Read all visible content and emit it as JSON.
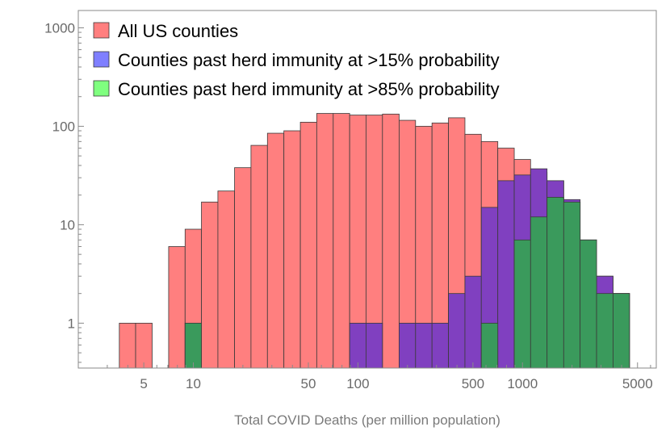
{
  "chart_data": {
    "type": "bar",
    "title": "",
    "xlabel": "Total COVID Deaths (per million population)",
    "ylabel": "",
    "x_scale": "log",
    "y_scale": "log",
    "xlim": [
      2,
      6500
    ],
    "ylim": [
      0.35,
      1500
    ],
    "x_ticks": [
      5,
      10,
      50,
      100,
      500,
      1000,
      5000
    ],
    "x_tick_labels": [
      "5",
      "10",
      "50",
      "100",
      "500",
      "1000",
      "5000"
    ],
    "y_ticks": [
      1,
      10,
      100,
      1000
    ],
    "y_tick_labels": [
      "1",
      "10",
      "100",
      "1000"
    ],
    "grid": false,
    "legend_position": "top-left",
    "bin_edges": [
      3.55,
      4.46,
      5.62,
      7.08,
      8.91,
      11.2,
      14.1,
      17.8,
      22.4,
      28.2,
      35.5,
      44.7,
      56.2,
      70.8,
      89.1,
      112,
      141,
      178,
      224,
      282,
      355,
      447,
      562,
      708,
      891,
      1120,
      1410,
      1780,
      2240,
      2820,
      3550,
      4470
    ],
    "series": [
      {
        "name": "All US counties",
        "color": "#ff7f7f",
        "values": [
          1,
          1,
          0,
          6,
          9,
          17,
          22,
          38,
          64,
          85,
          90,
          110,
          135,
          135,
          130,
          130,
          133,
          115,
          100,
          108,
          122,
          83,
          70,
          60,
          46,
          34,
          28,
          17,
          7,
          3,
          2
        ]
      },
      {
        "name": "Counties past herd immunity at >15% probability",
        "color": "#8040c0",
        "legend_color": "#7f7fff",
        "values": [
          0,
          0,
          0,
          0,
          1,
          0,
          0,
          0,
          0,
          0,
          0,
          0,
          0,
          0,
          1,
          1,
          0,
          1,
          1,
          1,
          2,
          3,
          15,
          28,
          32,
          37,
          28,
          18,
          7,
          3,
          2
        ]
      },
      {
        "name": "Counties past herd immunity at >85% probability",
        "color": "#3a9a5c",
        "legend_color": "#7fff7f",
        "values": [
          0,
          0,
          0,
          0,
          1,
          0,
          0,
          0,
          0,
          0,
          0,
          0,
          0,
          0,
          0,
          0,
          0,
          0,
          0,
          0,
          0,
          0,
          1,
          0,
          7,
          12,
          19,
          17,
          7,
          2,
          2
        ]
      }
    ]
  }
}
